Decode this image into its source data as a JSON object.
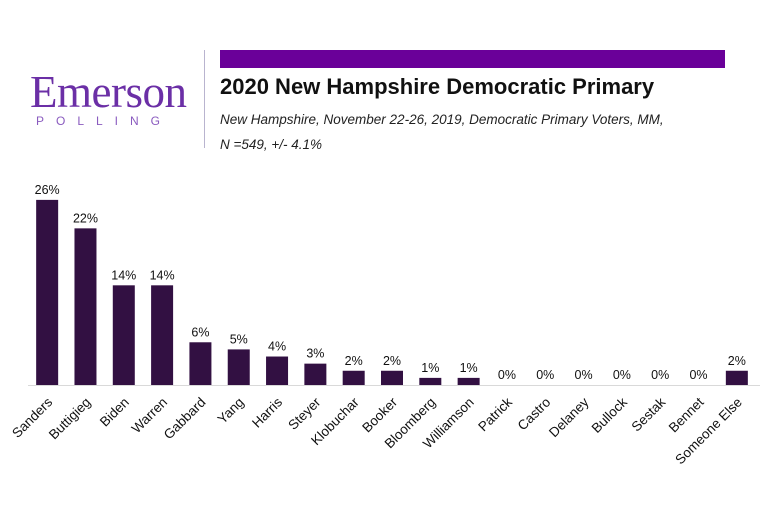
{
  "header": {
    "logo_word": "Emerson",
    "logo_sub": "POLLING",
    "title": "2020 New Hampshire Democratic Primary",
    "subtitle_line1": "New Hampshire, November 22-26, 2019, Democratic Primary Voters, MM,",
    "subtitle_line2": "N =549, +/-  4.1%",
    "accent_color": "#6a0099",
    "logo_color": "#6b2fa6"
  },
  "chart_data": {
    "type": "bar",
    "title": "2020 New Hampshire Democratic Primary",
    "categories": [
      "Sanders",
      "Buttigieg",
      "Biden",
      "Warren",
      "Gabbard",
      "Yang",
      "Harris",
      "Steyer",
      "Klobuchar",
      "Booker",
      "Bloomberg",
      "Williamson",
      "Patrick",
      "Castro",
      "Delaney",
      "Bullock",
      "Sestak",
      "Bennet",
      "Someone Else"
    ],
    "values": [
      26,
      22,
      14,
      14,
      6,
      5,
      4,
      3,
      2,
      2,
      1,
      1,
      0,
      0,
      0,
      0,
      0,
      0,
      2
    ],
    "data_labels": [
      "26%",
      "22%",
      "14%",
      "14%",
      "6%",
      "5%",
      "4%",
      "3%",
      "2%",
      "2%",
      "1%",
      "1%",
      "0%",
      "0%",
      "0%",
      "0%",
      "0%",
      "0%",
      "2%"
    ],
    "bar_color": "#321042",
    "unit": "%",
    "grid": false,
    "legend": "none"
  }
}
